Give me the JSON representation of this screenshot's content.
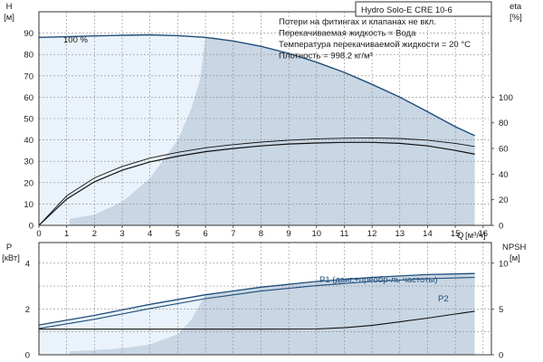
{
  "chart_data": [
    {
      "type": "line",
      "title": "Hydro Solo-E CRE 10-6",
      "notes": [
        "Потери на фитингах и клапанах не вкл.",
        "Перекачиваемая жидкость = Вода",
        "Температура перекачиваемой жидкости = 20 °C",
        "Плотность = 998.2 кг/м³"
      ],
      "xlabel": "Q",
      "xunit": "[м³/ч]",
      "xlim": [
        0,
        16.3
      ],
      "xticks": [
        0,
        1,
        2,
        3,
        4,
        5,
        6,
        7,
        8,
        9,
        10,
        11,
        12,
        13,
        14,
        15,
        16
      ],
      "ylabel_left": "H",
      "yunit_left": "[м]",
      "ylim_left": [
        0,
        100
      ],
      "yticks_left": [
        0,
        10,
        20,
        30,
        40,
        50,
        60,
        70,
        80,
        90
      ],
      "ylabel_right": "eta",
      "yunit_right": "[%]",
      "ylim_right": [
        0,
        166.7
      ],
      "yticks_right": [
        0,
        20,
        40,
        60,
        80,
        100
      ],
      "speed_label": "100 %",
      "grid": true,
      "regions": {
        "max_speed_envelope_H": {
          "x": [
            0,
            1,
            2,
            3,
            4,
            5,
            6,
            7,
            8,
            9,
            10,
            11,
            12,
            13,
            14,
            15,
            15.7
          ],
          "y": [
            88,
            88.3,
            88.7,
            89,
            89.2,
            88.8,
            88,
            86.3,
            83.8,
            80.5,
            76.4,
            71.6,
            66,
            60,
            53.2,
            46.2,
            42
          ]
        },
        "shaded_boundary_H": {
          "x": [
            1.1,
            2,
            3,
            4,
            5,
            5.5,
            5.8,
            6,
            6.3,
            8,
            10,
            12,
            14,
            15.7
          ],
          "y": [
            3,
            5,
            11,
            22,
            40,
            55,
            68,
            88,
            88,
            83.8,
            76.4,
            66,
            53.2,
            42
          ]
        }
      },
      "series": [
        {
          "name": "",
          "axis": "left",
          "x": [
            0,
            1,
            2,
            3,
            4,
            5,
            6,
            7,
            8,
            9,
            10,
            11,
            12,
            13,
            14,
            15,
            15.7
          ],
          "y": [
            88,
            88.3,
            88.7,
            89,
            89.2,
            88.8,
            88,
            86.3,
            83.8,
            80.5,
            76.4,
            71.6,
            66,
            60,
            53.2,
            46.2,
            42
          ]
        },
        {
          "name": "",
          "axis": "right",
          "x": [
            0,
            1,
            2,
            3,
            4,
            5,
            6,
            7,
            8,
            9,
            10,
            11,
            12,
            13,
            14,
            15,
            15.7
          ],
          "y": [
            0,
            20.5,
            34,
            43,
            49.5,
            54,
            57.5,
            60,
            62,
            63.5,
            64.3,
            64.8,
            64.8,
            64,
            62,
            58.5,
            55.5
          ]
        },
        {
          "name": "",
          "axis": "right",
          "x": [
            0,
            1,
            2,
            3,
            4,
            5,
            6,
            7,
            8,
            9,
            10,
            11,
            12,
            13,
            14,
            15,
            15.7
          ],
          "y": [
            0,
            23,
            37,
            46,
            52.5,
            57,
            60.5,
            63,
            65,
            66.5,
            67.5,
            68,
            68.2,
            67.8,
            66.5,
            64,
            61.5
          ]
        }
      ]
    },
    {
      "type": "line",
      "xlim": [
        0,
        16.3
      ],
      "ylabel_left": "P",
      "yunit_left": "[кВт]",
      "ylim_left": [
        0,
        4.9
      ],
      "yticks_left": [
        0,
        2,
        4
      ],
      "ylabel_right": "NPSH",
      "yunit_right": "[м]",
      "ylim_right": [
        0,
        12.25
      ],
      "yticks_right": [
        0,
        5,
        10
      ],
      "grid": true,
      "series": [
        {
          "name": "P1 (двиг.+преобр-ль частоты)",
          "axis": "left",
          "x": [
            0,
            2,
            4,
            6,
            8,
            10,
            12,
            14,
            15.7
          ],
          "y": [
            1.3,
            1.72,
            2.2,
            2.62,
            2.95,
            3.2,
            3.38,
            3.5,
            3.55
          ]
        },
        {
          "name": "P2",
          "axis": "left",
          "x": [
            0,
            2,
            4,
            6,
            8,
            10,
            12,
            14,
            15.7
          ],
          "y": [
            1.15,
            1.55,
            2.02,
            2.45,
            2.78,
            3.02,
            3.2,
            3.32,
            3.38
          ]
        },
        {
          "name": "",
          "axis": "right",
          "x": [
            0,
            2,
            4,
            6,
            8,
            10,
            11,
            12,
            13,
            14,
            15,
            15.7
          ],
          "y": [
            2.8,
            2.8,
            2.8,
            2.8,
            2.8,
            2.82,
            2.95,
            3.2,
            3.6,
            4.0,
            4.45,
            4.75
          ]
        }
      ],
      "regions": {
        "shaded_P": {
          "x": [
            1.1,
            2,
            3,
            4,
            5,
            5.5,
            6,
            8,
            10,
            12,
            14,
            15.7
          ],
          "y": [
            0.15,
            0.2,
            0.28,
            0.45,
            0.9,
            1.55,
            2.62,
            2.95,
            3.2,
            3.38,
            3.5,
            3.55
          ]
        }
      }
    }
  ]
}
